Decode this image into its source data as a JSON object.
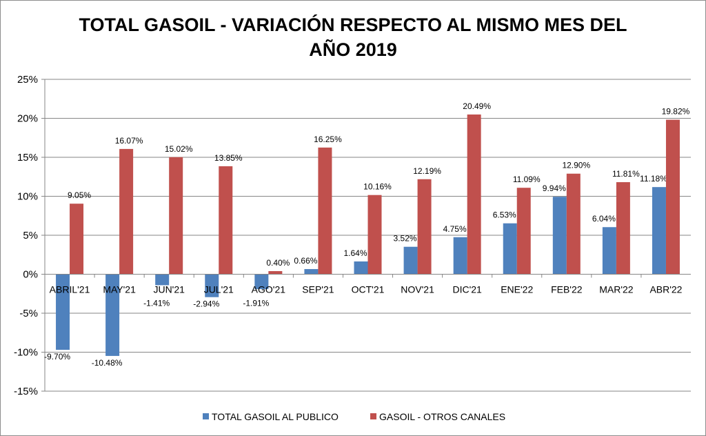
{
  "chart_data": {
    "type": "bar",
    "title_line1": "TOTAL GASOIL - VARIACIÓN RESPECTO AL MISMO MES DEL",
    "title_line2": "AÑO 2019",
    "categories": [
      "ABRIL'21",
      "MAY'21",
      "JUN'21",
      "JUL'21",
      "AGO'21",
      "SEP'21",
      "OCT'21",
      "NOV'21",
      "DIC'21",
      "ENE'22",
      "FEB'22",
      "MAR'22",
      "ABR'22"
    ],
    "series": [
      {
        "name": "TOTAL GASOIL AL PUBLICO",
        "color": "#4f81bd",
        "values": [
          -9.7,
          -10.48,
          -1.41,
          -2.94,
          -1.91,
          0.66,
          1.64,
          3.52,
          4.75,
          6.53,
          9.94,
          6.04,
          11.18
        ]
      },
      {
        "name": "GASOIL - OTROS CANALES",
        "color": "#c0504d",
        "values": [
          9.05,
          16.07,
          15.02,
          13.85,
          0.4,
          16.25,
          10.16,
          12.19,
          20.49,
          11.09,
          12.9,
          11.81,
          19.82
        ]
      }
    ],
    "yticks": [
      "25%",
      "20%",
      "15%",
      "10%",
      "5%",
      "0%",
      "-5%",
      "-10%",
      "-15%"
    ],
    "ylim": [
      -15,
      25
    ],
    "grid": true,
    "legend": "bottom",
    "xlabel": "",
    "ylabel": ""
  }
}
